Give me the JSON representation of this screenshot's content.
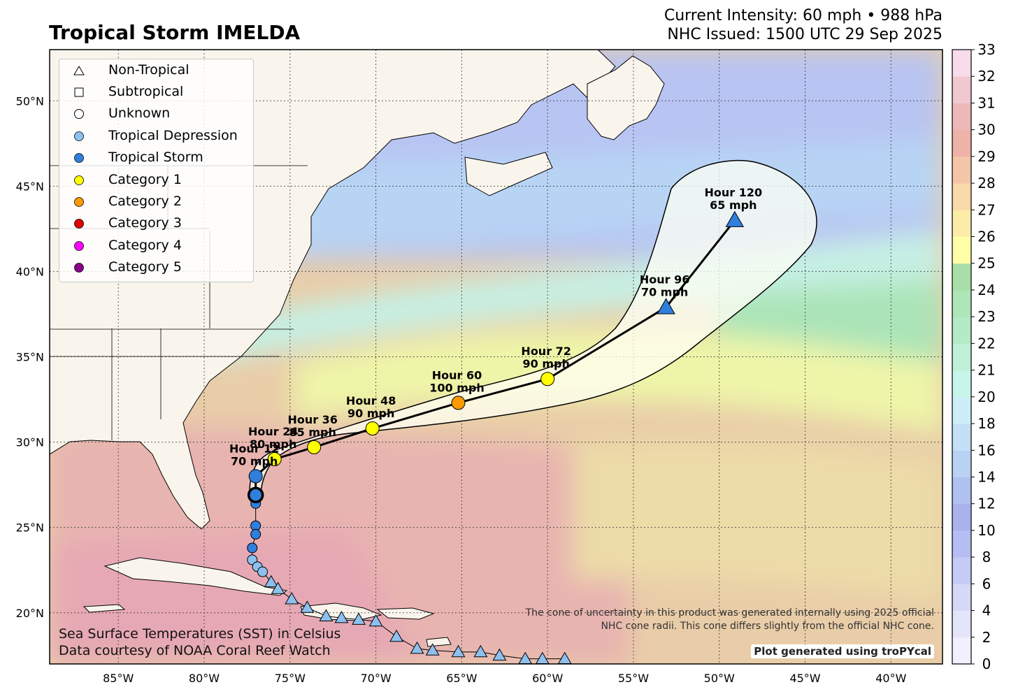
{
  "header": {
    "title": "Tropical Storm IMELDA",
    "intensity": "Current Intensity: 60 mph • 988 hPa",
    "issued": "NHC Issued: 1500 UTC 29 Sep 2025"
  },
  "map": {
    "projection": "lat-lon",
    "lon_range": [
      -89,
      -37
    ],
    "lat_range": [
      17,
      53
    ],
    "grid": true,
    "lon_ticks": [
      "85°W",
      "80°W",
      "75°W",
      "70°W",
      "65°W",
      "60°W",
      "55°W",
      "50°W",
      "45°W",
      "40°W"
    ],
    "lat_ticks": [
      "20°N",
      "25°N",
      "30°N",
      "35°N",
      "40°N",
      "45°N",
      "50°N"
    ]
  },
  "legend": {
    "placement": "top-left",
    "items": [
      {
        "label": "Non-Tropical",
        "symbol": "triangle",
        "color": "#ffffff"
      },
      {
        "label": "Subtropical",
        "symbol": "square",
        "color": "#ffffff"
      },
      {
        "label": "Unknown",
        "symbol": "circle",
        "color": "#ffffff"
      },
      {
        "label": "Tropical Depression",
        "symbol": "circle",
        "color": "#8ec0ee"
      },
      {
        "label": "Tropical Storm",
        "symbol": "circle",
        "color": "#2f7fdd"
      },
      {
        "label": "Category 1",
        "symbol": "circle",
        "color": "#ffff00"
      },
      {
        "label": "Category 2",
        "symbol": "circle",
        "color": "#ff9900"
      },
      {
        "label": "Category 3",
        "symbol": "circle",
        "color": "#e00000"
      },
      {
        "label": "Category 4",
        "symbol": "circle",
        "color": "#ff00ff"
      },
      {
        "label": "Category 5",
        "symbol": "circle",
        "color": "#8b008b"
      }
    ]
  },
  "colorbar": {
    "ticks": [
      "0",
      "2",
      "4",
      "6",
      "8",
      "10",
      "12",
      "14",
      "16",
      "18",
      "20",
      "21",
      "22",
      "23",
      "24",
      "25",
      "26",
      "27",
      "28",
      "29",
      "30",
      "31",
      "32",
      "33"
    ],
    "colors": [
      "#ffffff",
      "#f2f0ff",
      "#e4e4fb",
      "#d6d8f7",
      "#c6cbf5",
      "#b6bdf2",
      "#aab2ee",
      "#b0c1f0",
      "#b9d2f3",
      "#c4e0f6",
      "#cdeef8",
      "#c8f5ea",
      "#bff0d8",
      "#b4ebc6",
      "#aee6b8",
      "#a8dfa8",
      "#ffffa8",
      "#fbeca8",
      "#f8d9a8",
      "#f4c6a8",
      "#efb2a8",
      "#ecb8b8",
      "#f0c8d2",
      "#f8dcec"
    ]
  },
  "forecast": [
    {
      "hour": "Hour 12",
      "wind": "70 mph",
      "lon": -77.0,
      "lat": 28.0,
      "category": "Tropical Storm",
      "color": "#2f7fdd",
      "shape": "circle"
    },
    {
      "hour": "Hour 24",
      "wind": "80 mph",
      "lon": -75.9,
      "lat": 29.0,
      "category": "Category 1",
      "color": "#ffff00",
      "shape": "circle"
    },
    {
      "hour": "Hour 36",
      "wind": "85 mph",
      "lon": -73.6,
      "lat": 29.7,
      "category": "Category 1",
      "color": "#ffff00",
      "shape": "circle"
    },
    {
      "hour": "Hour 48",
      "wind": "90 mph",
      "lon": -70.2,
      "lat": 30.8,
      "category": "Category 1",
      "color": "#ffff00",
      "shape": "circle"
    },
    {
      "hour": "Hour 60",
      "wind": "100 mph",
      "lon": -65.2,
      "lat": 32.3,
      "category": "Category 2",
      "color": "#ff9900",
      "shape": "circle"
    },
    {
      "hour": "Hour 72",
      "wind": "90 mph",
      "lon": -60.0,
      "lat": 33.7,
      "category": "Category 1",
      "color": "#ffff00",
      "shape": "circle"
    },
    {
      "hour": "Hour 96",
      "wind": "70 mph",
      "lon": -53.1,
      "lat": 37.9,
      "category": "Non-Tropical",
      "color": "#2f7fdd",
      "shape": "triangle"
    },
    {
      "hour": "Hour 120",
      "wind": "65 mph",
      "lon": -49.1,
      "lat": 43.0,
      "category": "Non-Tropical",
      "color": "#2f7fdd",
      "shape": "triangle"
    }
  ],
  "current_position": {
    "lon": -77.0,
    "lat": 26.9
  },
  "past_track": [
    {
      "lon": -77.0,
      "lat": 26.4,
      "color": "#2f7fdd",
      "shape": "circle"
    },
    {
      "lon": -77.0,
      "lat": 25.1,
      "color": "#2f7fdd",
      "shape": "circle"
    },
    {
      "lon": -77.0,
      "lat": 24.6,
      "color": "#2f7fdd",
      "shape": "circle"
    },
    {
      "lon": -77.2,
      "lat": 23.8,
      "color": "#2f7fdd",
      "shape": "circle"
    },
    {
      "lon": -77.2,
      "lat": 23.1,
      "color": "#8ec0ee",
      "shape": "circle"
    },
    {
      "lon": -76.9,
      "lat": 22.7,
      "color": "#8ec0ee",
      "shape": "circle"
    },
    {
      "lon": -76.6,
      "lat": 22.4,
      "color": "#8ec0ee",
      "shape": "circle"
    },
    {
      "lon": -76.1,
      "lat": 21.8,
      "color": "#8ec0ee",
      "shape": "triangle"
    },
    {
      "lon": -75.7,
      "lat": 21.4,
      "color": "#8ec0ee",
      "shape": "triangle"
    },
    {
      "lon": -74.9,
      "lat": 20.8,
      "color": "#8ec0ee",
      "shape": "triangle"
    },
    {
      "lon": -74.0,
      "lat": 20.3,
      "color": "#8ec0ee",
      "shape": "triangle"
    },
    {
      "lon": -72.9,
      "lat": 19.8,
      "color": "#8ec0ee",
      "shape": "triangle"
    },
    {
      "lon": -72.0,
      "lat": 19.7,
      "color": "#8ec0ee",
      "shape": "triangle"
    },
    {
      "lon": -71.0,
      "lat": 19.6,
      "color": "#8ec0ee",
      "shape": "triangle"
    },
    {
      "lon": -70.0,
      "lat": 19.5,
      "color": "#8ec0ee",
      "shape": "triangle"
    },
    {
      "lon": -68.8,
      "lat": 18.6,
      "color": "#8ec0ee",
      "shape": "triangle"
    },
    {
      "lon": -67.6,
      "lat": 17.9,
      "color": "#8ec0ee",
      "shape": "triangle"
    },
    {
      "lon": -66.7,
      "lat": 17.8,
      "color": "#8ec0ee",
      "shape": "triangle"
    },
    {
      "lon": -65.2,
      "lat": 17.7,
      "color": "#8ec0ee",
      "shape": "triangle"
    },
    {
      "lon": -63.9,
      "lat": 17.7,
      "color": "#8ec0ee",
      "shape": "triangle"
    },
    {
      "lon": -62.8,
      "lat": 17.5,
      "color": "#8ec0ee",
      "shape": "triangle"
    },
    {
      "lon": -61.3,
      "lat": 17.3,
      "color": "#8ec0ee",
      "shape": "triangle"
    },
    {
      "lon": -60.3,
      "lat": 17.3,
      "color": "#8ec0ee",
      "shape": "triangle"
    },
    {
      "lon": -59.0,
      "lat": 17.3,
      "color": "#8ec0ee",
      "shape": "triangle"
    }
  ],
  "footer": {
    "sst_line1": "Sea Surface Temperatures (SST) in Celsius",
    "sst_line2": "Data courtesy of NOAA Coral Reef Watch",
    "cone_line1": "The cone of uncertainty in this product was generated internally using 2025 official",
    "cone_line2": "NHC cone radii. This cone differs slightly from the official NHC cone.",
    "credit": "Plot generated using troPYcal"
  }
}
